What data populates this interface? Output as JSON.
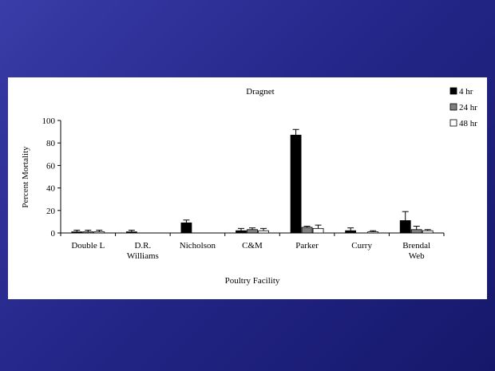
{
  "chart_data": {
    "type": "bar",
    "title": "Dragnet",
    "xlabel": "Poultry Facility",
    "ylabel": "Percent Mortality",
    "ylim": [
      0,
      100
    ],
    "yticks": [
      0,
      20,
      40,
      60,
      80,
      100
    ],
    "grid": false,
    "legend_position": "top-right",
    "categories": [
      [
        "Double L"
      ],
      [
        "D.R.",
        "Williams"
      ],
      [
        "Nicholson"
      ],
      [
        "C&M"
      ],
      [
        "Parker"
      ],
      [
        "Curry"
      ],
      [
        "Brendal",
        "Web"
      ]
    ],
    "series": [
      {
        "name": "4 hr",
        "color": "#000000",
        "values": [
          1,
          1,
          9,
          2,
          87,
          2,
          11
        ],
        "errors": [
          1.5,
          1.5,
          2.5,
          2,
          5,
          2.5,
          8
        ]
      },
      {
        "name": "24 hr",
        "color": "#808080",
        "values": [
          1,
          0,
          0,
          3,
          5,
          0,
          3
        ],
        "errors": [
          1.5,
          0,
          0,
          1.5,
          1,
          0,
          3
        ]
      },
      {
        "name": "48 hr",
        "color": "#ffffff",
        "values": [
          1,
          0,
          0,
          2,
          4,
          1,
          2
        ],
        "errors": [
          1.5,
          0,
          0,
          2,
          3,
          1,
          1
        ]
      }
    ]
  }
}
